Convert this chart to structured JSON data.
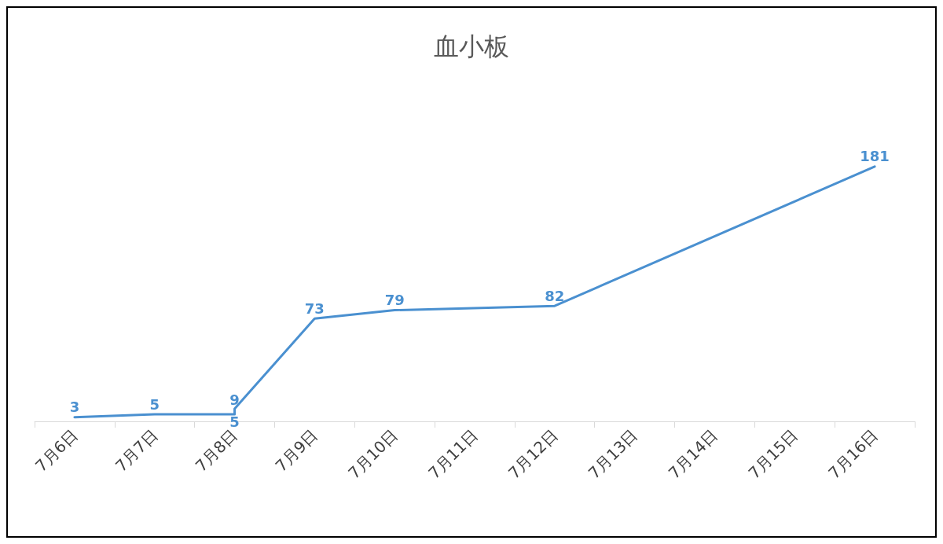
{
  "chart_data": {
    "type": "line",
    "title": "血小板",
    "x": [
      "--07-06",
      "--07-07",
      "--07-08",
      "--07-08",
      "--07-09",
      "--07-10",
      "--07-12",
      "--07-16"
    ],
    "series": [
      {
        "color": "#4a90d0",
        "values": [
          3,
          5,
          5,
          9,
          73,
          79,
          82,
          181
        ]
      }
    ],
    "xlim": [
      "--07-05T12:00",
      "--07-16T12:00"
    ],
    "xticks": [
      {
        "value": "--07-06",
        "label": "7月6日"
      },
      {
        "value": "--07-07",
        "label": "7月7日"
      },
      {
        "value": "--07-08",
        "label": "7月8日"
      },
      {
        "value": "--07-09",
        "label": "7月9日"
      },
      {
        "value": "--07-10",
        "label": "7月10日"
      },
      {
        "value": "--07-11",
        "label": "7月11日"
      },
      {
        "value": "--07-12",
        "label": "7月12日"
      },
      {
        "value": "--07-13",
        "label": "7月13日"
      },
      {
        "value": "--07-14",
        "label": "7月14日"
      },
      {
        "value": "--07-15",
        "label": "7月15日"
      },
      {
        "value": "--07-16",
        "label": "7月16日"
      }
    ],
    "tick_labels": "x",
    "data_labels": true,
    "grid": false,
    "marker": "none",
    "line_style": "solid"
  }
}
